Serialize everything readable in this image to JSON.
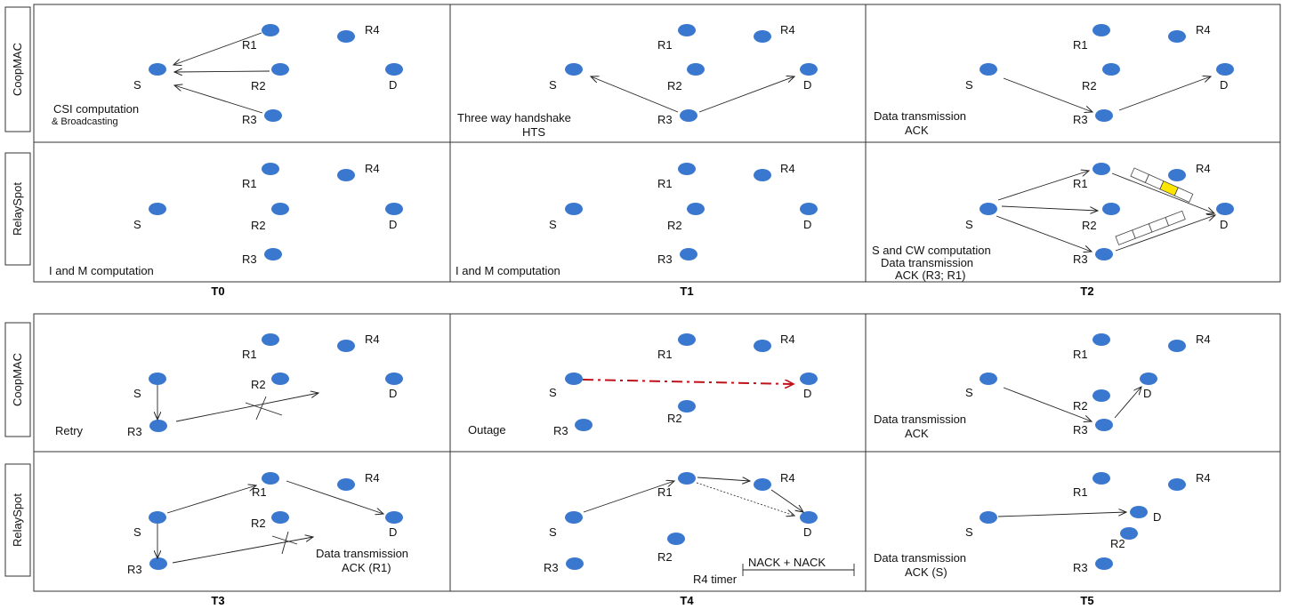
{
  "rows": [
    {
      "id": "top-coopmac",
      "label": "CoopMAC"
    },
    {
      "id": "top-relayspot",
      "label": "RelaySpot"
    },
    {
      "id": "bottom-coopmac",
      "label": "CoopMAC"
    },
    {
      "id": "bottom-relayspot",
      "label": "RelaySpot"
    }
  ],
  "steps": [
    "T0",
    "T1",
    "T2",
    "T3",
    "T4",
    "T5"
  ],
  "nodes": {
    "S": "S",
    "D": "D",
    "R1": "R1",
    "R2": "R2",
    "R3": "R3",
    "R4": "R4"
  },
  "captions": {
    "t0_coop_1": "CSI computation",
    "t0_coop_2": "& Broadcasting",
    "t1_coop_1": "Three way handshake",
    "t1_coop_2": "HTS",
    "t2_coop_1": "Data transmission",
    "t2_coop_2": "ACK",
    "t0_relay": "I and M computation",
    "t1_relay": "I and M computation",
    "t2_relay_1": "S and CW computation",
    "t2_relay_2": "Data transmission",
    "t2_relay_3": "ACK (R3; R1)",
    "t3_coop": "Retry",
    "t4_coop": "Outage",
    "t5_coop_1": "Data transmission",
    "t5_coop_2": "ACK",
    "t3_relay_1": "Data transmission",
    "t3_relay_2": "ACK (R1)",
    "t4_relay_nack": "NACK + NACK",
    "t4_relay_timer": "R4 timer",
    "t5_relay_1": "Data transmission",
    "t5_relay_2": "ACK (S)"
  },
  "colors": {
    "node": "#3a78d0",
    "outage_arrow": "#c0111b",
    "buffer_highlight": "#ffe600"
  }
}
